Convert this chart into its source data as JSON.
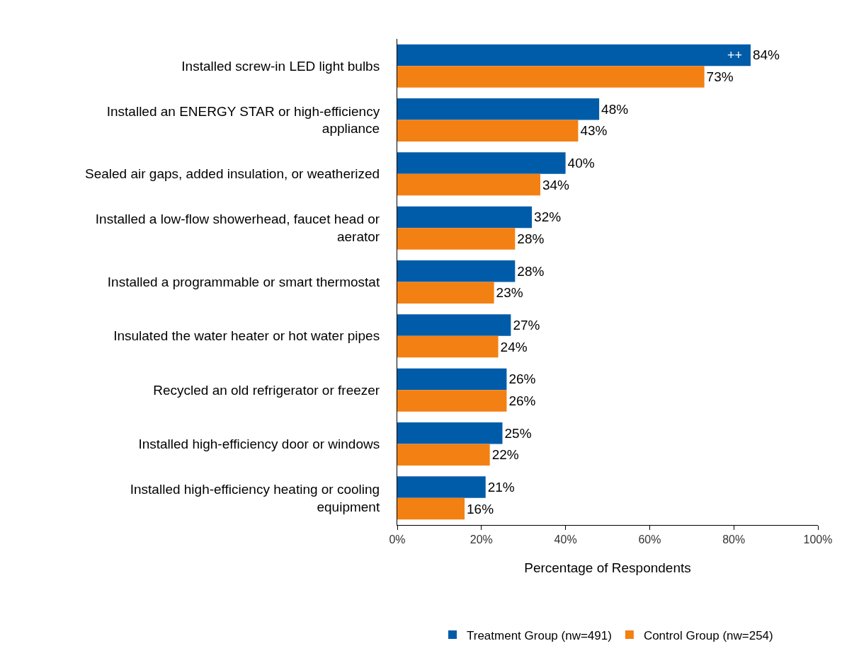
{
  "chart_data": {
    "type": "bar",
    "orientation": "horizontal",
    "xlabel": "Percentage of Respondents",
    "categories": [
      "Installed screw-in LED light bulbs",
      "Installed an ENERGY STAR or high-efficiency appliance",
      "Sealed air gaps, added insulation, or weatherized",
      "Installed a low-flow showerhead, faucet head or aerator",
      "Installed a programmable or smart thermostat",
      "Insulated the water heater or hot water pipes",
      "Recycled an old refrigerator or freezer",
      "Installed high-efficiency door or windows",
      "Installed high-efficiency heating or cooling equipment"
    ],
    "series": [
      {
        "name": "Treatment Group (nw=491)",
        "color": "#005ca9",
        "values": [
          84,
          48,
          40,
          32,
          28,
          27,
          26,
          25,
          21
        ],
        "value_labels": [
          "84%",
          "48%",
          "40%",
          "32%",
          "28%",
          "27%",
          "26%",
          "25%",
          "21%"
        ]
      },
      {
        "name": "Control Group (nw=254)",
        "color": "#f38012",
        "values": [
          73,
          43,
          34,
          28,
          23,
          24,
          26,
          22,
          16
        ],
        "value_labels": [
          "73%",
          "43%",
          "34%",
          "28%",
          "23%",
          "24%",
          "26%",
          "22%",
          "16%"
        ]
      }
    ],
    "annotations": [
      {
        "text": "++",
        "x": 84,
        "y": "Installed screw-in LED light bulbs"
      }
    ],
    "xlim": [
      0,
      100
    ],
    "xticks": [
      {
        "value": 0,
        "label": "0%"
      },
      {
        "value": 20,
        "label": "20%"
      },
      {
        "value": 40,
        "label": "40%"
      },
      {
        "value": 60,
        "label": "60%"
      },
      {
        "value": 80,
        "label": "80%"
      },
      {
        "value": 100,
        "label": "100%"
      }
    ],
    "grid": false,
    "legend": "bottom"
  }
}
